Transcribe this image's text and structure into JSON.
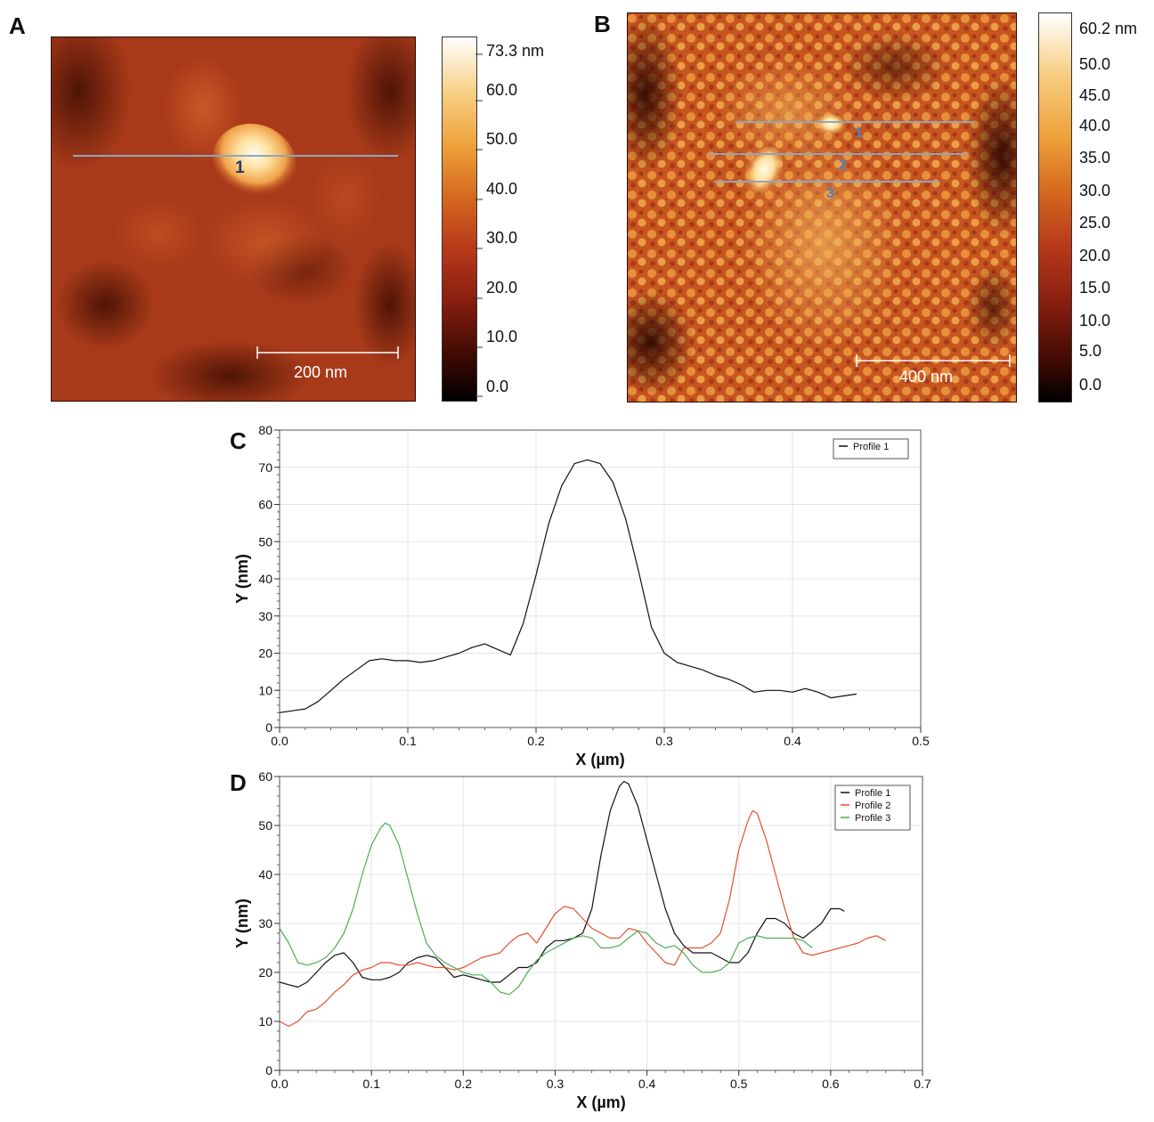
{
  "panels": {
    "a": {
      "letter": "A",
      "colorbar": {
        "max_label": "73.3 nm",
        "ticks": [
          "60.0",
          "50.0",
          "40.0",
          "30.0",
          "20.0",
          "10.0",
          "0.0"
        ]
      },
      "scale_bar": "200 nm",
      "profile_labels": [
        "1"
      ]
    },
    "b": {
      "letter": "B",
      "colorbar": {
        "max_label": "60.2 nm",
        "ticks": [
          "50.0",
          "45.0",
          "40.0",
          "35.0",
          "30.0",
          "25.0",
          "20.0",
          "15.0",
          "10.0",
          "5.0",
          "0.0"
        ]
      },
      "scale_bar": "400 nm",
      "profile_labels": [
        "1",
        "2",
        "3"
      ]
    },
    "c": {
      "letter": "C"
    },
    "d": {
      "letter": "D"
    }
  },
  "colors": {
    "black": "#111111",
    "red": "#e0512e",
    "green": "#4caf50",
    "profile_line": "#8fa6bd",
    "profile_label": "#3a6ea8"
  },
  "chart_data": [
    {
      "type": "line",
      "xlabel": "X (µm)",
      "ylabel": "Y (nm)",
      "xlim": [
        0,
        0.5
      ],
      "ylim": [
        0,
        80
      ],
      "xticks": [
        "0.0",
        "0.1",
        "0.2",
        "0.3",
        "0.4",
        "0.5"
      ],
      "yticks": [
        "0",
        "10",
        "20",
        "30",
        "40",
        "50",
        "60",
        "70",
        "80"
      ],
      "grid": true,
      "legend": "top-right",
      "series": [
        {
          "name": "Profile 1",
          "color": "#111111",
          "x": [
            0,
            0.01,
            0.02,
            0.03,
            0.04,
            0.05,
            0.06,
            0.07,
            0.08,
            0.09,
            0.1,
            0.11,
            0.12,
            0.13,
            0.14,
            0.15,
            0.16,
            0.17,
            0.18,
            0.19,
            0.2,
            0.21,
            0.22,
            0.23,
            0.24,
            0.25,
            0.26,
            0.27,
            0.28,
            0.29,
            0.3,
            0.31,
            0.32,
            0.33,
            0.34,
            0.35,
            0.36,
            0.37,
            0.38,
            0.39,
            0.4,
            0.41,
            0.42,
            0.43,
            0.44,
            0.45
          ],
          "y": [
            4,
            4.5,
            5,
            7,
            10,
            13,
            15.5,
            18,
            18.5,
            18,
            18,
            17.5,
            18,
            19,
            20,
            21.5,
            22.5,
            21,
            19.5,
            28,
            41,
            55,
            65,
            71,
            72,
            71,
            66,
            56,
            42,
            27,
            20,
            17.5,
            16.5,
            15.5,
            14,
            13,
            11.5,
            9.5,
            10,
            10,
            9.5,
            10.5,
            9.5,
            8,
            8.5,
            9
          ]
        }
      ]
    },
    {
      "type": "line",
      "xlabel": "X (µm)",
      "ylabel": "Y (nm)",
      "xlim": [
        0,
        0.7
      ],
      "ylim": [
        0,
        60
      ],
      "xticks": [
        "0.0",
        "0.1",
        "0.2",
        "0.3",
        "0.4",
        "0.5",
        "0.6",
        "0.7"
      ],
      "yticks": [
        "0",
        "10",
        "20",
        "30",
        "40",
        "50",
        "60"
      ],
      "grid": true,
      "legend": "top-right",
      "series": [
        {
          "name": "Profile 1",
          "color": "#111111",
          "x": [
            0,
            0.01,
            0.02,
            0.03,
            0.04,
            0.05,
            0.06,
            0.07,
            0.08,
            0.09,
            0.1,
            0.11,
            0.12,
            0.13,
            0.14,
            0.15,
            0.16,
            0.17,
            0.18,
            0.19,
            0.2,
            0.21,
            0.22,
            0.23,
            0.24,
            0.25,
            0.26,
            0.27,
            0.28,
            0.29,
            0.3,
            0.31,
            0.32,
            0.33,
            0.34,
            0.35,
            0.36,
            0.37,
            0.375,
            0.38,
            0.39,
            0.4,
            0.41,
            0.42,
            0.43,
            0.44,
            0.45,
            0.46,
            0.47,
            0.48,
            0.49,
            0.5,
            0.51,
            0.52,
            0.53,
            0.54,
            0.55,
            0.56,
            0.57,
            0.58,
            0.59,
            0.6,
            0.61,
            0.615
          ],
          "y": [
            18,
            17.5,
            17,
            18,
            20,
            22,
            23.5,
            24,
            22,
            19,
            18.5,
            18.5,
            19,
            20,
            22,
            23,
            23.5,
            23,
            21,
            19,
            19.5,
            19,
            18.5,
            18,
            18,
            19.5,
            21,
            21,
            22,
            25,
            26.5,
            26.5,
            27,
            28,
            33,
            44,
            53,
            58,
            59,
            58.5,
            54,
            47,
            40,
            33,
            28,
            25.5,
            24,
            24,
            24,
            23,
            22,
            22,
            24,
            28,
            31,
            31,
            30,
            28,
            27,
            28.5,
            30,
            33,
            33,
            32.5
          ]
        },
        {
          "name": "Profile 2",
          "color": "#e0512e",
          "x": [
            0,
            0.01,
            0.02,
            0.03,
            0.04,
            0.05,
            0.06,
            0.07,
            0.08,
            0.09,
            0.1,
            0.11,
            0.12,
            0.13,
            0.14,
            0.15,
            0.16,
            0.17,
            0.18,
            0.19,
            0.2,
            0.21,
            0.22,
            0.23,
            0.24,
            0.25,
            0.26,
            0.27,
            0.28,
            0.29,
            0.3,
            0.31,
            0.32,
            0.33,
            0.34,
            0.35,
            0.36,
            0.37,
            0.38,
            0.39,
            0.4,
            0.41,
            0.42,
            0.43,
            0.44,
            0.45,
            0.46,
            0.47,
            0.48,
            0.49,
            0.5,
            0.51,
            0.515,
            0.52,
            0.53,
            0.54,
            0.55,
            0.56,
            0.57,
            0.58,
            0.59,
            0.6,
            0.61,
            0.62,
            0.63,
            0.64,
            0.65,
            0.66
          ],
          "y": [
            10,
            9,
            10,
            12,
            12.5,
            14,
            16,
            17.5,
            19.5,
            20.5,
            21,
            22,
            22,
            21.5,
            21.5,
            22,
            21.5,
            21,
            21,
            20.5,
            21,
            22,
            23,
            23.5,
            24,
            26,
            27.5,
            28,
            26,
            29,
            32,
            33.5,
            33,
            31,
            29,
            28,
            27,
            27,
            29,
            28.5,
            26,
            24,
            22,
            21.5,
            25,
            25,
            25,
            26,
            28,
            35,
            45,
            51,
            53,
            52.5,
            47,
            40,
            33,
            27,
            24,
            23.5,
            24,
            24.5,
            25,
            25.5,
            26,
            27,
            27.5,
            26.5
          ]
        },
        {
          "name": "Profile 3",
          "color": "#4caf50",
          "x": [
            0,
            0.01,
            0.02,
            0.03,
            0.04,
            0.05,
            0.06,
            0.07,
            0.08,
            0.09,
            0.1,
            0.11,
            0.115,
            0.12,
            0.13,
            0.14,
            0.15,
            0.16,
            0.17,
            0.18,
            0.19,
            0.2,
            0.21,
            0.22,
            0.23,
            0.24,
            0.25,
            0.26,
            0.27,
            0.28,
            0.29,
            0.3,
            0.31,
            0.32,
            0.33,
            0.34,
            0.35,
            0.36,
            0.37,
            0.38,
            0.39,
            0.4,
            0.41,
            0.42,
            0.43,
            0.44,
            0.45,
            0.46,
            0.47,
            0.48,
            0.49,
            0.5,
            0.51,
            0.52,
            0.53,
            0.54,
            0.55,
            0.56,
            0.57,
            0.58
          ],
          "y": [
            29,
            26,
            22,
            21.5,
            22,
            23,
            25,
            28,
            33,
            40,
            46,
            49.5,
            50.5,
            50,
            46,
            39,
            32,
            26,
            23.5,
            22,
            21,
            20,
            19.5,
            19.5,
            18,
            16,
            15.5,
            17,
            20,
            22.5,
            24,
            25,
            26,
            27,
            27.5,
            27,
            25,
            25,
            25.5,
            27,
            28.5,
            28,
            26,
            25,
            25.5,
            24,
            21.5,
            20,
            20,
            20.5,
            22,
            26,
            27,
            27.5,
            27,
            27,
            27,
            27,
            26.5,
            25
          ]
        }
      ]
    }
  ]
}
